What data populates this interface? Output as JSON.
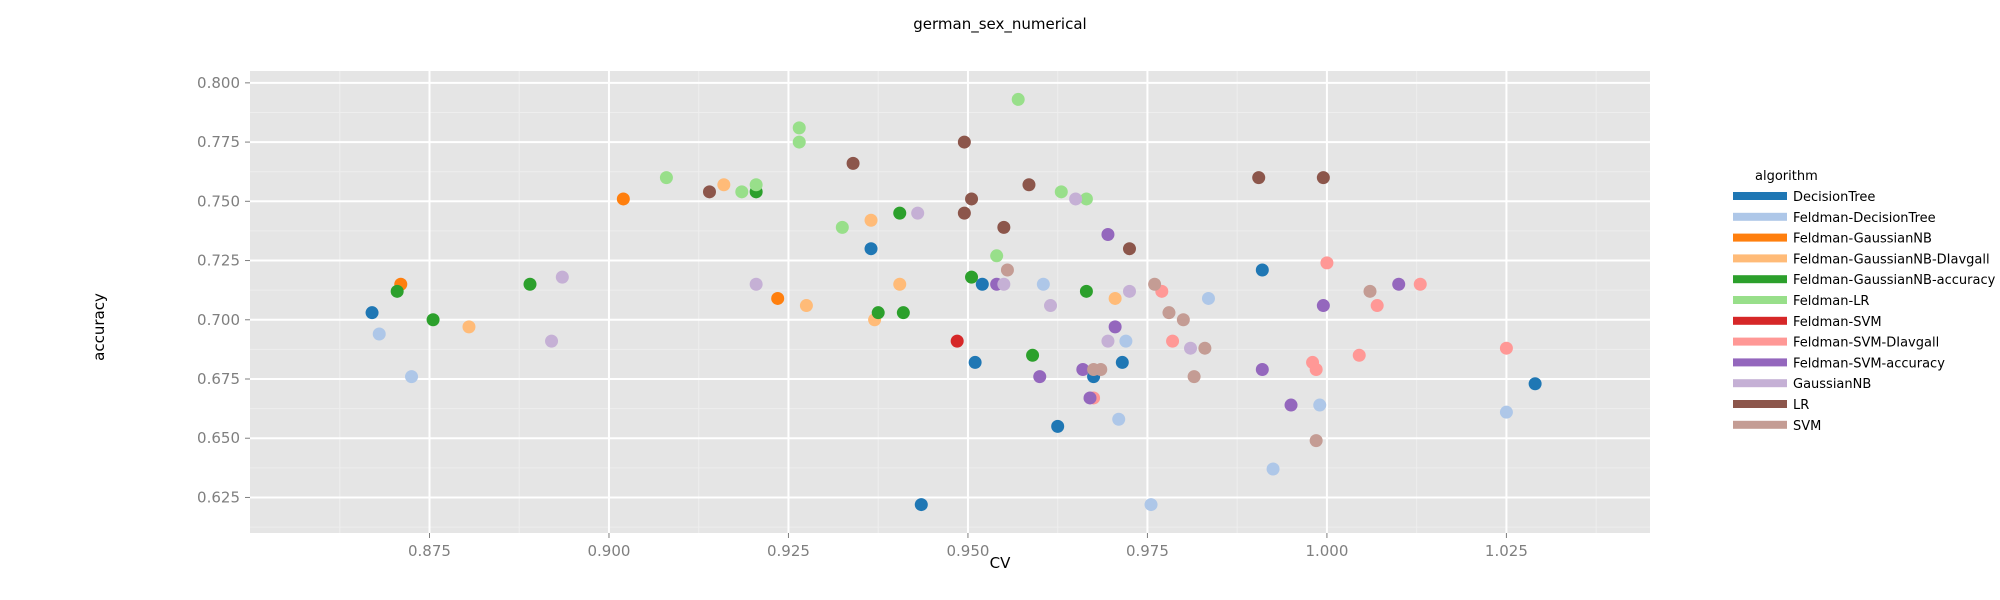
{
  "chart_data": {
    "type": "scatter",
    "title": "german_sex_numerical",
    "xlabel": "CV",
    "ylabel": "accuracy",
    "xlim": [
      0.85,
      1.045
    ],
    "ylim": [
      0.61,
      0.805
    ],
    "x_ticks": [
      0.875,
      0.9,
      0.925,
      0.95,
      0.975,
      1.0,
      1.025
    ],
    "x_tick_labels": [
      "0.875",
      "0.900",
      "0.925",
      "0.950",
      "0.975",
      "1.000",
      "1.025"
    ],
    "y_ticks": [
      0.625,
      0.65,
      0.675,
      0.7,
      0.725,
      0.75,
      0.775,
      0.8
    ],
    "y_tick_labels": [
      "0.625",
      "0.650",
      "0.675",
      "0.700",
      "0.725",
      "0.750",
      "0.775",
      "0.800"
    ],
    "grid": true,
    "legend_title": "algorithm",
    "legend_position": "right",
    "colors": {
      "panel_background": "#e5e5e5",
      "grid_major": "#ffffff",
      "grid_minor": "#eeeeee",
      "tick_label": "#7f7f7f"
    },
    "series": [
      {
        "name": "DecisionTree",
        "color": "#1f77b4",
        "points": [
          [
            0.867,
            0.703
          ],
          [
            0.9365,
            0.73
          ],
          [
            0.9435,
            0.622
          ],
          [
            0.951,
            0.682
          ],
          [
            0.952,
            0.715
          ],
          [
            0.9625,
            0.655
          ],
          [
            0.9675,
            0.676
          ],
          [
            0.9715,
            0.682
          ],
          [
            0.991,
            0.721
          ],
          [
            1.029,
            0.673
          ]
        ]
      },
      {
        "name": "Feldman-DecisionTree",
        "color": "#aec7e8",
        "points": [
          [
            0.868,
            0.694
          ],
          [
            0.8725,
            0.676
          ],
          [
            0.9605,
            0.715
          ],
          [
            0.971,
            0.658
          ],
          [
            0.972,
            0.691
          ],
          [
            0.9755,
            0.622
          ],
          [
            0.9835,
            0.709
          ],
          [
            0.9925,
            0.637
          ],
          [
            0.999,
            0.664
          ],
          [
            1.025,
            0.661
          ]
        ]
      },
      {
        "name": "Feldman-GaussianNB",
        "color": "#ff7f0e",
        "points": [
          [
            0.871,
            0.715
          ],
          [
            0.902,
            0.751
          ],
          [
            0.9235,
            0.709
          ]
        ]
      },
      {
        "name": "Feldman-GaussianNB-DIavgall",
        "color": "#ffbb78",
        "points": [
          [
            0.8805,
            0.697
          ],
          [
            0.916,
            0.757
          ],
          [
            0.9275,
            0.706
          ],
          [
            0.9365,
            0.742
          ],
          [
            0.937,
            0.7
          ],
          [
            0.9405,
            0.715
          ],
          [
            0.9705,
            0.709
          ]
        ]
      },
      {
        "name": "Feldman-GaussianNB-accuracy",
        "color": "#2ca02c",
        "points": [
          [
            0.8705,
            0.712
          ],
          [
            0.8755,
            0.7
          ],
          [
            0.889,
            0.715
          ],
          [
            0.9205,
            0.754
          ],
          [
            0.9375,
            0.703
          ],
          [
            0.9405,
            0.745
          ],
          [
            0.941,
            0.703
          ],
          [
            0.9505,
            0.718
          ],
          [
            0.959,
            0.685
          ],
          [
            0.9665,
            0.712
          ]
        ]
      },
      {
        "name": "Feldman-LR",
        "color": "#98df8a",
        "points": [
          [
            0.908,
            0.76
          ],
          [
            0.9185,
            0.754
          ],
          [
            0.9205,
            0.757
          ],
          [
            0.9265,
            0.775
          ],
          [
            0.9265,
            0.781
          ],
          [
            0.9325,
            0.739
          ],
          [
            0.954,
            0.727
          ],
          [
            0.957,
            0.793
          ],
          [
            0.963,
            0.754
          ],
          [
            0.9665,
            0.751
          ]
        ]
      },
      {
        "name": "Feldman-SVM",
        "color": "#d62728",
        "points": [
          [
            0.9485,
            0.691
          ]
        ]
      },
      {
        "name": "Feldman-SVM-DIavgall",
        "color": "#ff9896",
        "points": [
          [
            0.9675,
            0.667
          ],
          [
            0.977,
            0.712
          ],
          [
            0.9785,
            0.691
          ],
          [
            0.998,
            0.682
          ],
          [
            0.9985,
            0.679
          ],
          [
            1.0,
            0.724
          ],
          [
            1.0045,
            0.685
          ],
          [
            1.007,
            0.706
          ],
          [
            1.013,
            0.715
          ],
          [
            1.025,
            0.688
          ]
        ]
      },
      {
        "name": "Feldman-SVM-accuracy",
        "color": "#9467bd",
        "points": [
          [
            0.954,
            0.715
          ],
          [
            0.96,
            0.676
          ],
          [
            0.966,
            0.679
          ],
          [
            0.967,
            0.667
          ],
          [
            0.9695,
            0.736
          ],
          [
            0.9705,
            0.697
          ],
          [
            0.991,
            0.679
          ],
          [
            0.995,
            0.664
          ],
          [
            0.9995,
            0.706
          ],
          [
            1.01,
            0.715
          ]
        ]
      },
      {
        "name": "GaussianNB",
        "color": "#c5b0d5",
        "points": [
          [
            0.892,
            0.691
          ],
          [
            0.8935,
            0.718
          ],
          [
            0.9205,
            0.715
          ],
          [
            0.943,
            0.745
          ],
          [
            0.955,
            0.715
          ],
          [
            0.9615,
            0.706
          ],
          [
            0.965,
            0.751
          ],
          [
            0.9695,
            0.691
          ],
          [
            0.9725,
            0.712
          ],
          [
            0.981,
            0.688
          ]
        ]
      },
      {
        "name": "LR",
        "color": "#8c564b",
        "points": [
          [
            0.914,
            0.754
          ],
          [
            0.934,
            0.766
          ],
          [
            0.9495,
            0.775
          ],
          [
            0.9495,
            0.745
          ],
          [
            0.9505,
            0.751
          ],
          [
            0.955,
            0.739
          ],
          [
            0.9585,
            0.757
          ],
          [
            0.9725,
            0.73
          ],
          [
            0.9905,
            0.76
          ],
          [
            0.9995,
            0.76
          ]
        ]
      },
      {
        "name": "SVM",
        "color": "#c49c94",
        "points": [
          [
            0.9555,
            0.721
          ],
          [
            0.9675,
            0.679
          ],
          [
            0.9685,
            0.679
          ],
          [
            0.976,
            0.715
          ],
          [
            0.978,
            0.703
          ],
          [
            0.98,
            0.7
          ],
          [
            0.9815,
            0.676
          ],
          [
            0.983,
            0.688
          ],
          [
            0.9985,
            0.649
          ],
          [
            1.006,
            0.712
          ]
        ]
      }
    ]
  }
}
